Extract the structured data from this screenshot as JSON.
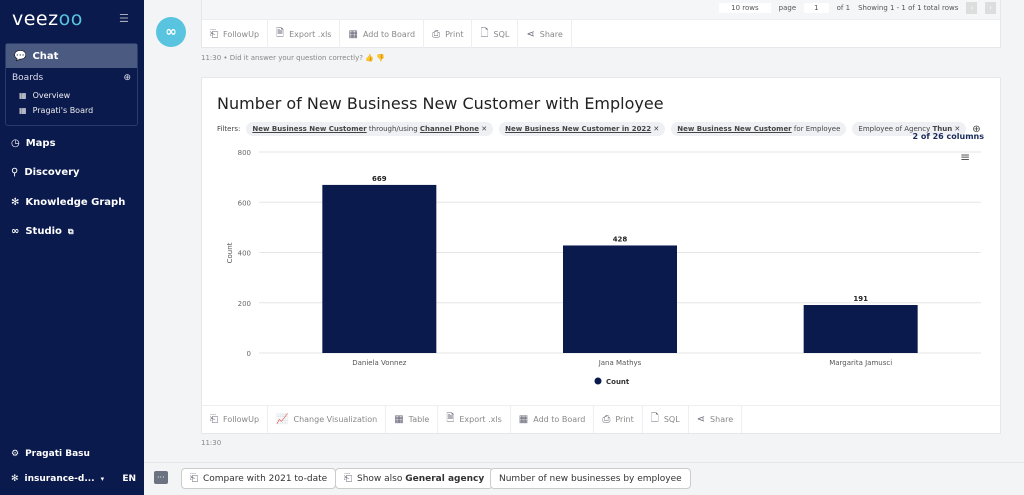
{
  "sidebar": {
    "logo_text": "veez",
    "logo_oo": "oo",
    "chat": "Chat",
    "boards": "Boards",
    "board_items": [
      "Overview",
      "Pragati's Board"
    ],
    "nav": [
      "Maps",
      "Discovery",
      "Knowledge Graph",
      "Studio"
    ],
    "user": "Pragati Basu",
    "database": "insurance-d...",
    "language": "EN"
  },
  "prev_card": {
    "rows_select": "10 rows",
    "page_label": "page",
    "page_value": "1",
    "of_pages": "of 1",
    "showing": "Showing 1 - 1 of 1 total rows",
    "toolbar": [
      "FollowUp",
      "Export .xls",
      "Add to Board",
      "Print",
      "SQL",
      "Share"
    ],
    "time": "11:30",
    "feedback": "Did it answer your question correctly?"
  },
  "card": {
    "title": "Number of New Business New Customer with Employee",
    "filters_label": "Filters:",
    "filters": [
      {
        "b1": "New Business New Customer",
        "t": " through/using ",
        "b2": "Channel Phone"
      },
      {
        "b1": "New Business New Customer in 2022",
        "t": "",
        "b2": ""
      },
      {
        "b1": "New Business New Customer",
        "t": " for Employee",
        "b2": ""
      },
      {
        "b1": "",
        "t": "Employee of Agency ",
        "b2": "Thun"
      }
    ],
    "columns": "2 of 26 columns",
    "toolbar": [
      "FollowUp",
      "Change Visualization",
      "Table",
      "Export .xls",
      "Add to Board",
      "Print",
      "SQL",
      "Share"
    ],
    "time": "11:30"
  },
  "chart_data": {
    "type": "bar",
    "categories": [
      "Daniela Vonnez",
      "Jana Mathys",
      "Margarita Jamusci"
    ],
    "values": [
      669,
      428,
      191
    ],
    "ylabel": "Count",
    "ylim": [
      0,
      800
    ],
    "yticks": [
      0,
      200,
      400,
      600,
      800
    ],
    "legend": "Count",
    "legend_position": "bottom",
    "grid": true,
    "bar_color": "#0b1a4d"
  },
  "suggestions": [
    {
      "t": "Compare with 2021 to-date"
    },
    {
      "t": "Show also ",
      "b": "General agency"
    },
    {
      "t": "Number of new businesses by employee"
    }
  ]
}
